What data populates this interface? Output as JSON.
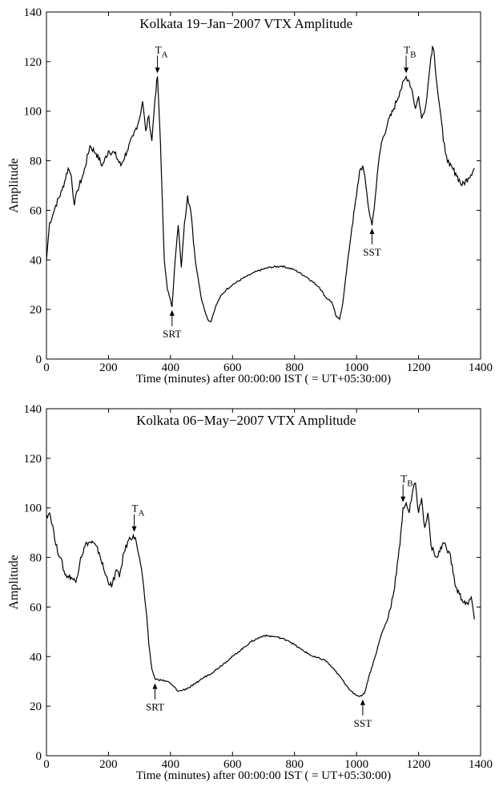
{
  "chart_data": [
    {
      "type": "line",
      "title": "Kolkata 19−Jan−2007 VTX Amplitude",
      "xlabel": "Time (minutes) after 00:00:00 IST ( = UT+05:30:00)",
      "ylabel": "Amplitude",
      "xlim": [
        0,
        1400
      ],
      "ylim": [
        0,
        140
      ],
      "xticks": [
        0,
        200,
        400,
        600,
        800,
        1000,
        1200,
        1400
      ],
      "yticks": [
        0,
        20,
        40,
        60,
        80,
        100,
        120,
        140
      ],
      "grid": false,
      "series": [
        {
          "x": [
            0,
            10,
            20,
            30,
            50,
            70,
            80,
            90,
            100,
            120,
            140,
            160,
            180,
            200,
            220,
            240,
            260,
            280,
            300,
            310,
            320,
            330,
            340,
            350,
            358,
            365,
            370,
            380,
            390,
            400,
            405,
            415,
            425,
            435,
            445,
            455,
            465,
            480,
            500,
            520,
            530,
            545,
            560,
            580,
            600,
            640,
            680,
            720,
            760,
            800,
            840,
            880,
            900,
            920,
            935,
            945,
            955,
            970,
            985,
            1000,
            1010,
            1020,
            1030,
            1040,
            1050,
            1060,
            1070,
            1080,
            1100,
            1120,
            1140,
            1160,
            1170,
            1180,
            1190,
            1200,
            1210,
            1220,
            1230,
            1240,
            1245,
            1250,
            1260,
            1270,
            1280,
            1290,
            1300,
            1320,
            1340,
            1360,
            1380
          ],
          "values": [
            40,
            55,
            58,
            62,
            68,
            77,
            74,
            62,
            68,
            75,
            86,
            83,
            78,
            84,
            83,
            78,
            84,
            90,
            97,
            104,
            92,
            98,
            88,
            105,
            114,
            95,
            78,
            40,
            28,
            24,
            21,
            40,
            54,
            37,
            55,
            66,
            60,
            40,
            24,
            16,
            15,
            21,
            25,
            28,
            30,
            33,
            35.5,
            37,
            37.5,
            36,
            33,
            29,
            25,
            23,
            17,
            16,
            22,
            38,
            53,
            66,
            76,
            78,
            70,
            60,
            54,
            65,
            78,
            87,
            95,
            101,
            108,
            114,
            112,
            108,
            101,
            106,
            97,
            100,
            110,
            122,
            126,
            124,
            110,
            100,
            88,
            82,
            78,
            75,
            70,
            73,
            77
          ]
        }
      ],
      "annotations": [
        {
          "label": "T",
          "sub": "A",
          "x": 358,
          "y": 114,
          "dir": "down"
        },
        {
          "label": "SRT",
          "x": 405,
          "y": 21,
          "dir": "up"
        },
        {
          "label": "SST",
          "x": 1050,
          "y": 54,
          "dir": "up"
        },
        {
          "label": "T",
          "sub": "B",
          "x": 1160,
          "y": 114,
          "dir": "down"
        }
      ]
    },
    {
      "type": "line",
      "title": "Kolkata 06−May−2007 VTX Amplitude",
      "xlabel": "Time (minutes) after 00:00:00 IST ( = UT+05:30:00)",
      "ylabel": "Amplitude",
      "xlim": [
        0,
        1400
      ],
      "ylim": [
        0,
        140
      ],
      "xticks": [
        0,
        200,
        400,
        600,
        800,
        1000,
        1200,
        1400
      ],
      "yticks": [
        0,
        20,
        40,
        60,
        80,
        100,
        120,
        140
      ],
      "grid": false,
      "series": [
        {
          "x": [
            0,
            10,
            20,
            30,
            45,
            60,
            80,
            95,
            110,
            130,
            150,
            170,
            190,
            210,
            225,
            235,
            250,
            265,
            280,
            290,
            300,
            310,
            320,
            330,
            340,
            350,
            370,
            390,
            410,
            425,
            440,
            460,
            480,
            500,
            540,
            580,
            620,
            660,
            700,
            740,
            780,
            820,
            860,
            900,
            940,
            970,
            990,
            1010,
            1025,
            1040,
            1060,
            1080,
            1100,
            1120,
            1140,
            1150,
            1160,
            1170,
            1180,
            1190,
            1200,
            1210,
            1220,
            1230,
            1240,
            1250,
            1260,
            1280,
            1300,
            1320,
            1340,
            1360,
            1370,
            1380
          ],
          "values": [
            97,
            98,
            93,
            85,
            80,
            73,
            72,
            70,
            80,
            86,
            86,
            82,
            73,
            68,
            75,
            72,
            82,
            87,
            89,
            86,
            80,
            72,
            60,
            45,
            35,
            31,
            30.5,
            30,
            28,
            26,
            26.5,
            27.5,
            29,
            31,
            34,
            38,
            42,
            46,
            48.5,
            48,
            46.5,
            43,
            40,
            38.5,
            33,
            28,
            25,
            24,
            25,
            32,
            40,
            49,
            55,
            66,
            85,
            100,
            102,
            98,
            106,
            110,
            98,
            104,
            92,
            98,
            85,
            82,
            80,
            86,
            82,
            68,
            63,
            61,
            64,
            55
          ]
        }
      ],
      "annotations": [
        {
          "label": "T",
          "sub": "A",
          "x": 283,
          "y": 89,
          "dir": "down"
        },
        {
          "label": "SRT",
          "x": 350,
          "y": 30.5,
          "dir": "up"
        },
        {
          "label": "SST",
          "x": 1020,
          "y": 24,
          "dir": "up"
        },
        {
          "label": "T",
          "sub": "B",
          "x": 1150,
          "y": 101,
          "dir": "down"
        }
      ]
    }
  ]
}
